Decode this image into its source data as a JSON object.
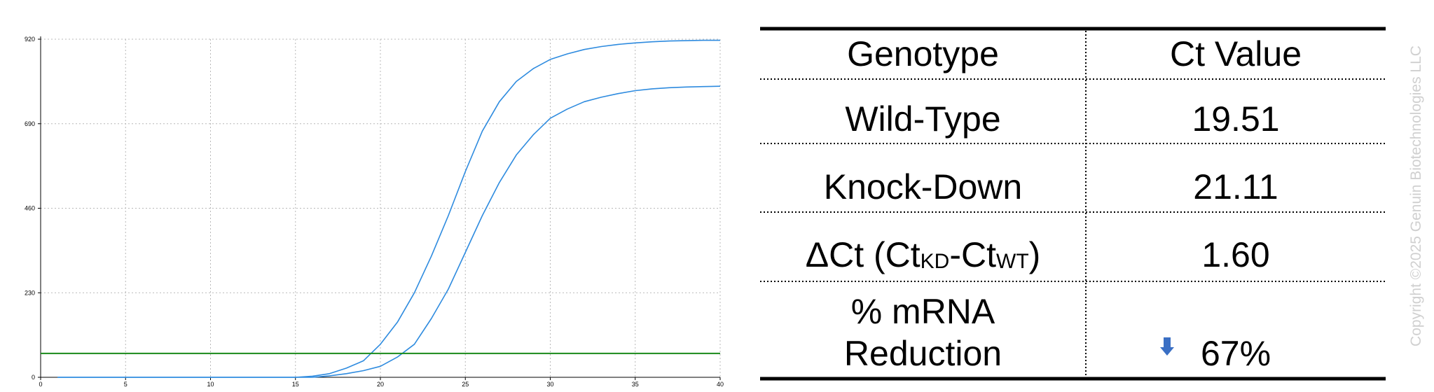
{
  "chart_data": {
    "type": "line",
    "x_ticks": [
      0,
      5,
      10,
      15,
      20,
      25,
      30,
      35,
      40
    ],
    "y_ticks": [
      0,
      230,
      460,
      690,
      920
    ],
    "xlim": [
      0,
      40
    ],
    "ylim": [
      0,
      920
    ],
    "grid": true,
    "series": [
      {
        "color": "#2e8bdf",
        "x": [
          1,
          15,
          16,
          17,
          18,
          19,
          20,
          21,
          22,
          23,
          24,
          25,
          26,
          27,
          28,
          29,
          30,
          31,
          32,
          33,
          34,
          35,
          36,
          37,
          38,
          39,
          40
        ],
        "y": [
          0,
          0,
          3,
          10,
          25,
          45,
          90,
          150,
          230,
          330,
          440,
          560,
          670,
          750,
          805,
          840,
          865,
          880,
          892,
          900,
          906,
          910,
          913,
          915,
          916,
          917,
          917
        ]
      },
      {
        "color": "#2e8bdf",
        "x": [
          1,
          16,
          17,
          18,
          19,
          20,
          21,
          22,
          23,
          24,
          25,
          26,
          27,
          28,
          29,
          30,
          31,
          32,
          33,
          34,
          35,
          36,
          37,
          38,
          39,
          40
        ],
        "y": [
          0,
          0,
          4,
          10,
          18,
          30,
          55,
          90,
          160,
          240,
          340,
          440,
          530,
          605,
          660,
          705,
          730,
          750,
          762,
          772,
          780,
          785,
          788,
          790,
          791,
          792
        ]
      },
      {
        "color": "#1a8a1a",
        "x": [
          0,
          40
        ],
        "y": [
          65,
          65
        ]
      }
    ]
  },
  "table": {
    "headers": [
      "Genotype",
      "Ct Value"
    ],
    "rows": [
      {
        "label": "Wild-Type",
        "value": "19.51"
      },
      {
        "label": "Knock-Down",
        "value": "21.11"
      },
      {
        "label_prefix": "ΔCt (Ct",
        "label_sub1": "KD",
        "label_mid": "-Ct",
        "label_sub2": "WT",
        "label_suffix": ")",
        "value": "1.60"
      },
      {
        "label_line1": "% mRNA",
        "label_line2": "Reduction",
        "value": "67%",
        "value_icon": "down-arrow-icon"
      }
    ]
  },
  "copyright": "Copyright ©2025 Genuin Biotechnologies LLC",
  "colors": {
    "curve": "#2e8bdf",
    "threshold": "#1a8a1a",
    "arrow": "#3a6fc4",
    "watermark": "#d0d0d0"
  }
}
